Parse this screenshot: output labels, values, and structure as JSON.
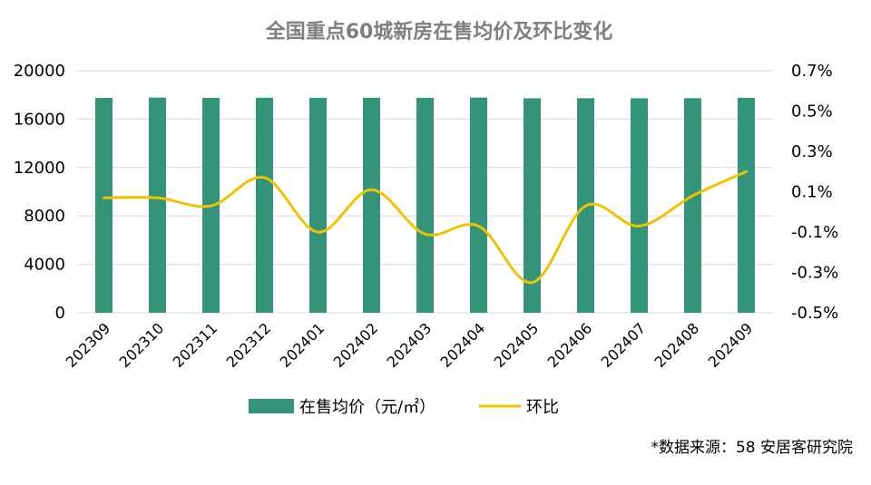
{
  "chart_data": {
    "type": "bar+line",
    "title": "全国重点60城新房在售均价及环比变化",
    "categories": [
      "202309",
      "202310",
      "202311",
      "202312",
      "202401",
      "202402",
      "202403",
      "202404",
      "202405",
      "202406",
      "202407",
      "202408",
      "202409"
    ],
    "series": [
      {
        "name": "在售均价（元/㎡）",
        "type": "bar",
        "axis": "left",
        "color": "#339479",
        "values": [
          17750,
          17780,
          17760,
          17770,
          17760,
          17770,
          17760,
          17780,
          17720,
          17730,
          17720,
          17730,
          17760
        ]
      },
      {
        "name": "环比",
        "type": "line",
        "axis": "right",
        "color": "#f2c200",
        "values": [
          0.07,
          0.07,
          0.03,
          0.17,
          -0.1,
          0.11,
          -0.11,
          -0.07,
          -0.35,
          0.03,
          -0.07,
          0.08,
          0.2
        ]
      }
    ],
    "y_left": {
      "ylim": [
        0,
        20000
      ],
      "ticks": [
        "0",
        "4000",
        "8000",
        "12000",
        "16000",
        "20000"
      ]
    },
    "y_right": {
      "ylim": [
        -0.5,
        0.7
      ],
      "ticks": [
        "-0.5%",
        "-0.3%",
        "-0.1%",
        "0.1%",
        "0.3%",
        "0.5%",
        "0.7%"
      ]
    },
    "legend_position": "bottom-center",
    "grid": true,
    "source_note": "*数据来源：58 安居客研究院"
  }
}
